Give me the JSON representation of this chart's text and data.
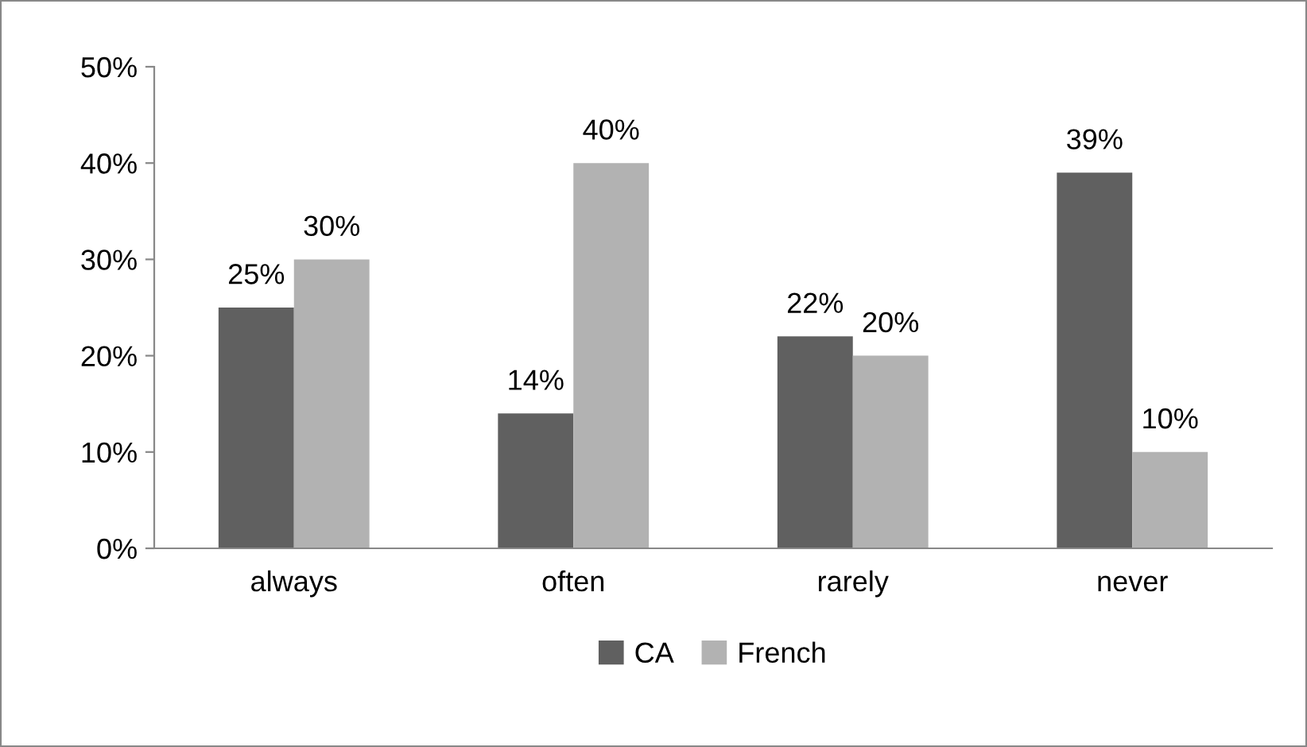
{
  "chart_data": {
    "type": "bar",
    "categories": [
      "always",
      "often",
      "rarely",
      "never"
    ],
    "series": [
      {
        "name": "CA",
        "color": "#606060",
        "values": [
          25,
          14,
          22,
          39
        ],
        "value_labels": [
          "25%",
          "14%",
          "22%",
          "39%"
        ]
      },
      {
        "name": "French",
        "color": "#b2b2b2",
        "values": [
          30,
          40,
          20,
          10
        ],
        "value_labels": [
          "30%",
          "40%",
          "20%",
          "10%"
        ]
      }
    ],
    "ylim": [
      0,
      50
    ],
    "yticks": [
      {
        "value": 0,
        "label": "0%"
      },
      {
        "value": 10,
        "label": "10%"
      },
      {
        "value": 20,
        "label": "20%"
      },
      {
        "value": 30,
        "label": "30%"
      },
      {
        "value": 40,
        "label": "40%"
      },
      {
        "value": 50,
        "label": "50%"
      }
    ],
    "grid": false,
    "legend": "bottom"
  }
}
